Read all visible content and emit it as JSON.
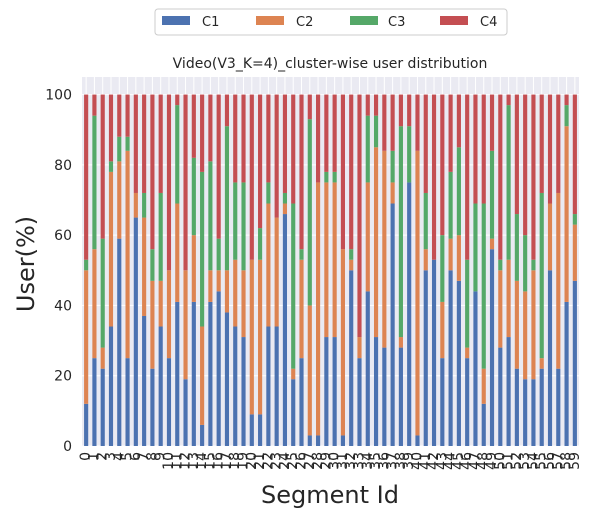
{
  "chart_data": {
    "type": "bar",
    "stacked": true,
    "title": "Video(V3_K=4)_cluster-wise user distribution",
    "xlabel": "Segment Id",
    "ylabel": "User(%)",
    "ylim": [
      0,
      105
    ],
    "yticks": [
      0,
      20,
      40,
      60,
      80,
      100
    ],
    "grid": true,
    "legend_position": "top",
    "categories": [
      "0",
      "1",
      "2",
      "3",
      "4",
      "5",
      "6",
      "7",
      "8",
      "9",
      "10",
      "11",
      "12",
      "13",
      "14",
      "15",
      "16",
      "17",
      "18",
      "19",
      "20",
      "21",
      "22",
      "23",
      "24",
      "25",
      "26",
      "27",
      "28",
      "29",
      "30",
      "31",
      "32",
      "33",
      "34",
      "35",
      "36",
      "37",
      "38",
      "39",
      "40",
      "41",
      "42",
      "43",
      "44",
      "45",
      "46",
      "47",
      "48",
      "49",
      "50",
      "51",
      "52",
      "53",
      "54",
      "55",
      "56",
      "57",
      "58",
      "59"
    ],
    "series": [
      {
        "name": "C1",
        "color": "#4c72b0",
        "values": [
          12,
          25,
          22,
          34,
          59,
          25,
          65,
          37,
          22,
          34,
          25,
          41,
          19,
          41,
          6,
          41,
          44,
          38,
          34,
          31,
          9,
          9,
          34,
          34,
          66,
          19,
          25,
          3,
          3,
          31,
          31,
          3,
          50,
          25,
          44,
          31,
          28,
          69,
          28,
          75,
          3,
          50,
          53,
          25,
          50,
          47,
          25,
          44,
          12,
          56,
          28,
          31,
          22,
          19,
          19,
          22,
          50,
          22,
          41,
          47
        ]
      },
      {
        "name": "C2",
        "color": "#dd8452",
        "values": [
          38,
          31,
          6,
          44,
          22,
          59,
          7,
          28,
          25,
          13,
          25,
          28,
          31,
          19,
          28,
          9,
          6,
          12,
          19,
          19,
          44,
          44,
          35,
          31,
          3,
          3,
          28,
          37,
          72,
          44,
          44,
          53,
          3,
          6,
          31,
          54,
          56,
          6,
          3,
          0,
          81,
          6,
          0,
          16,
          9,
          13,
          3,
          0,
          10,
          3,
          22,
          22,
          25,
          25,
          31,
          3,
          19,
          50,
          50,
          16
        ]
      },
      {
        "name": "C3",
        "color": "#55a868",
        "values": [
          3,
          38,
          31,
          3,
          7,
          4,
          0,
          7,
          9,
          25,
          0,
          28,
          0,
          22,
          44,
          31,
          9,
          41,
          22,
          25,
          0,
          9,
          6,
          0,
          3,
          47,
          3,
          53,
          0,
          3,
          3,
          0,
          3,
          0,
          19,
          9,
          0,
          9,
          60,
          16,
          0,
          16,
          0,
          19,
          19,
          25,
          25,
          25,
          47,
          25,
          3,
          44,
          19,
          16,
          3,
          47,
          0,
          0,
          6,
          3
        ]
      },
      {
        "name": "C4",
        "color": "#c44e52",
        "values": [
          47,
          6,
          41,
          19,
          12,
          12,
          28,
          28,
          44,
          28,
          50,
          3,
          50,
          18,
          22,
          19,
          41,
          9,
          25,
          25,
          47,
          38,
          25,
          35,
          28,
          31,
          44,
          7,
          25,
          22,
          22,
          44,
          44,
          69,
          6,
          6,
          16,
          16,
          9,
          9,
          16,
          28,
          47,
          40,
          22,
          15,
          47,
          31,
          31,
          16,
          47,
          3,
          34,
          40,
          47,
          28,
          31,
          28,
          3,
          34
        ]
      }
    ]
  }
}
